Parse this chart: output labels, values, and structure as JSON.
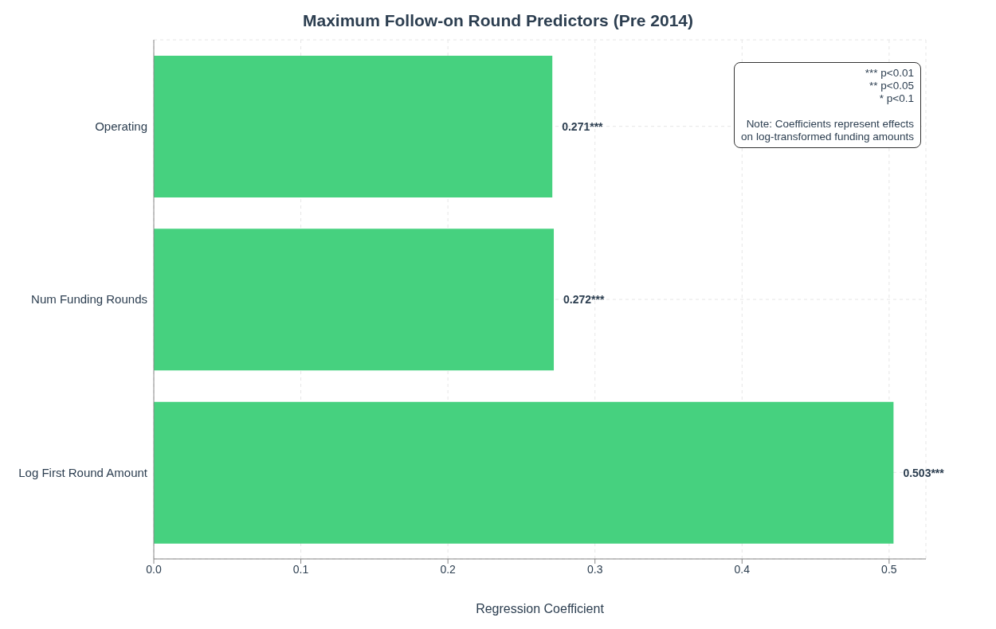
{
  "chart_data": {
    "type": "bar",
    "orientation": "horizontal",
    "title": "Maximum Follow-on Round Predictors (Pre 2014)",
    "xlabel": "Regression Coefficient",
    "categories": [
      "Operating",
      "Num Funding Rounds",
      "Log First Round Amount"
    ],
    "values": [
      0.271,
      0.272,
      0.503
    ],
    "value_labels": [
      "0.271***",
      "0.272***",
      "0.503***"
    ],
    "color": "#46d17f",
    "xlim": [
      0,
      0.525
    ],
    "xticks": [
      {
        "value": 0,
        "label": "0.0"
      },
      0.1,
      0.2,
      0.3,
      0.4,
      0.5
    ],
    "grid": true,
    "annotations": [
      "*** p<0.01\n** p<0.05\n* p<0.1\n\nNote: Coefficients represent effects\non log-transformed funding amounts"
    ]
  }
}
